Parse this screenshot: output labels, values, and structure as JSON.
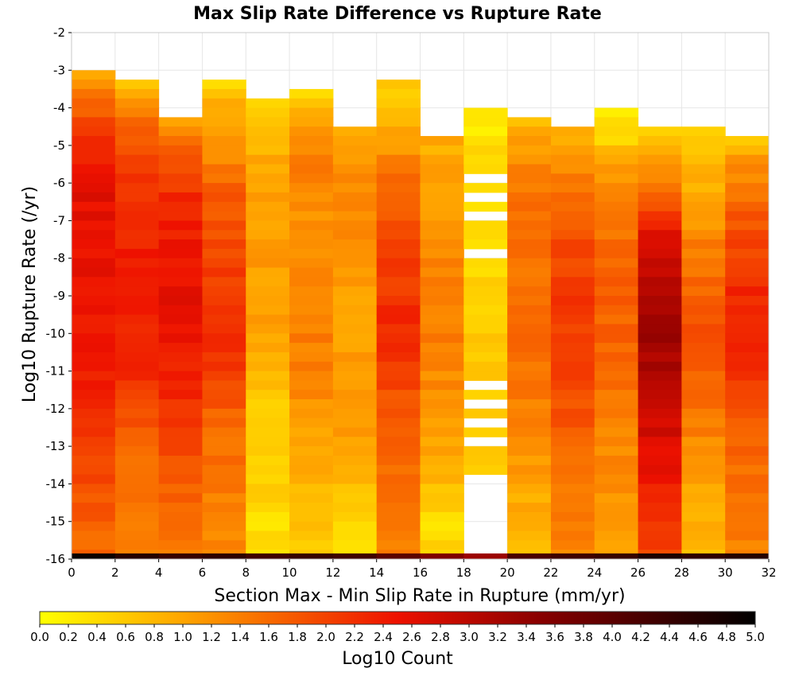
{
  "chart_data": {
    "type": "heatmap",
    "title": "Max Slip Rate Difference vs Rupture Rate",
    "xlabel": "Section Max - Min Slip Rate in Rupture (mm/yr)",
    "ylabel": "Log10 Rupture Rate (/yr)",
    "xlim": [
      0,
      32
    ],
    "ylim": [
      -16,
      -2
    ],
    "x_ticks": [
      "0",
      "2",
      "4",
      "6",
      "8",
      "10",
      "12",
      "14",
      "16",
      "18",
      "20",
      "22",
      "24",
      "26",
      "28",
      "30",
      "32"
    ],
    "y_ticks": [
      "-2",
      "-3",
      "-4",
      "-5",
      "-6",
      "-7",
      "-8",
      "-9",
      "-10",
      "-11",
      "-12",
      "-13",
      "-14",
      "-15",
      "-16"
    ],
    "x_bin_width": 2,
    "y_bin_height": 0.25,
    "grid": true,
    "colorbar": {
      "label": "Log10 Count",
      "min": 0,
      "max": 5,
      "ticks": [
        "0.0",
        "0.2",
        "0.4",
        "0.6",
        "0.8",
        "1.0",
        "1.2",
        "1.4",
        "1.6",
        "1.8",
        "2.0",
        "2.2",
        "2.4",
        "2.6",
        "2.8",
        "3.0",
        "3.2",
        "3.4",
        "3.6",
        "3.8",
        "4.0",
        "4.2",
        "4.4",
        "4.6",
        "4.8",
        "5.0"
      ],
      "placement": "bottom",
      "stops": [
        {
          "value": 0.0,
          "color": "#ffff00"
        },
        {
          "value": 1.0,
          "color": "#ffa500"
        },
        {
          "value": 2.5,
          "color": "#ee1100"
        },
        {
          "value": 3.5,
          "color": "#880000"
        },
        {
          "value": 5.0,
          "color": "#000000"
        }
      ]
    },
    "columns": [
      {
        "x0": 0,
        "x1": 2,
        "top": -3.0,
        "profile": [
          [
            -3.0,
            1.0
          ],
          [
            -3.5,
            1.4
          ],
          [
            -4.5,
            2.0
          ],
          [
            -6.0,
            2.6
          ],
          [
            -9.0,
            2.5
          ],
          [
            -12.0,
            2.3
          ],
          [
            -14.0,
            1.9
          ],
          [
            -15.75,
            1.6
          ]
        ]
      },
      {
        "x0": 2,
        "x1": 4,
        "top": -3.25,
        "profile": [
          [
            -3.25,
            0.4
          ],
          [
            -3.75,
            1.2
          ],
          [
            -4.5,
            1.7
          ],
          [
            -6.0,
            2.2
          ],
          [
            -8.5,
            2.4
          ],
          [
            -11.0,
            2.3
          ],
          [
            -13.0,
            1.6
          ],
          [
            -15.75,
            1.3
          ]
        ]
      },
      {
        "x0": 4,
        "x1": 6,
        "top": -4.25,
        "profile": [
          [
            -4.25,
            1.0
          ],
          [
            -5.0,
            1.6
          ],
          [
            -6.5,
            2.3
          ],
          [
            -9.5,
            2.6
          ],
          [
            -12.0,
            2.2
          ],
          [
            -13.5,
            1.8
          ],
          [
            -15.75,
            1.5
          ]
        ]
      },
      {
        "x0": 6,
        "x1": 8,
        "top": -3.25,
        "profile": [
          [
            -3.25,
            0.4
          ],
          [
            -4.0,
            1.0
          ],
          [
            -5.0,
            1.2
          ],
          [
            -6.5,
            1.8
          ],
          [
            -9.0,
            2.1
          ],
          [
            -10.5,
            2.2
          ],
          [
            -12.5,
            1.6
          ],
          [
            -15.75,
            1.3
          ]
        ]
      },
      {
        "x0": 8,
        "x1": 10,
        "top": -3.75,
        "profile": [
          [
            -3.75,
            0.3
          ],
          [
            -4.5,
            0.7
          ],
          [
            -6.0,
            1.1
          ],
          [
            -8.0,
            1.1
          ],
          [
            -10.0,
            1.0
          ],
          [
            -12.0,
            0.6
          ],
          [
            -14.0,
            0.5
          ],
          [
            -15.75,
            0.3
          ]
        ]
      },
      {
        "x0": 10,
        "x1": 12,
        "top": -3.5,
        "profile": [
          [
            -3.5,
            0.2
          ],
          [
            -4.25,
            0.9
          ],
          [
            -5.5,
            1.5
          ],
          [
            -7.0,
            1.2
          ],
          [
            -9.0,
            1.4
          ],
          [
            -11.0,
            1.4
          ],
          [
            -13.0,
            1.0
          ],
          [
            -15.75,
            0.6
          ]
        ]
      },
      {
        "x0": 12,
        "x1": 14,
        "top": -4.5,
        "profile": [
          [
            -4.5,
            0.8
          ],
          [
            -6.0,
            1.3
          ],
          [
            -8.0,
            1.2
          ],
          [
            -10.0,
            1.0
          ],
          [
            -12.0,
            1.2
          ],
          [
            -14.0,
            0.8
          ],
          [
            -15.75,
            0.3
          ]
        ]
      },
      {
        "x0": 14,
        "x1": 16,
        "top": -3.25,
        "profile": [
          [
            -3.25,
            0.5
          ],
          [
            -4.5,
            0.9
          ],
          [
            -6.0,
            1.6
          ],
          [
            -8.0,
            2.0
          ],
          [
            -10.0,
            2.3
          ],
          [
            -12.0,
            1.8
          ],
          [
            -14.0,
            1.5
          ],
          [
            -15.75,
            1.4
          ]
        ]
      },
      {
        "x0": 16,
        "x1": 18,
        "top": -4.75,
        "profile": [
          [
            -4.75,
            0.9
          ],
          [
            -6.0,
            1.0
          ],
          [
            -8.0,
            1.3
          ],
          [
            -10.0,
            1.4
          ],
          [
            -12.0,
            1.2
          ],
          [
            -14.0,
            0.8
          ],
          [
            -15.0,
            0.3
          ],
          [
            -15.75,
            0.5
          ]
        ]
      },
      {
        "x0": 18,
        "x1": 20,
        "top": -4.0,
        "profile": [
          [
            -4.0,
            0.1
          ],
          [
            -5.0,
            0.4
          ],
          [
            -7.0,
            0.3
          ],
          [
            -9.0,
            0.5
          ],
          [
            -11.0,
            0.6
          ],
          [
            -13.0,
            0.5
          ],
          [
            -13.5,
            0.6
          ]
        ],
        "gaps": [
          -5.9,
          -6.4,
          -6.9,
          -7.9,
          -11.4,
          -11.9,
          -12.4,
          -12.9
        ],
        "empty_below": -13.75
      },
      {
        "x0": 20,
        "x1": 22,
        "top": -4.25,
        "profile": [
          [
            -4.25,
            0.7
          ],
          [
            -5.0,
            1.1
          ],
          [
            -6.0,
            1.5
          ],
          [
            -8.0,
            1.5
          ],
          [
            -10.0,
            1.6
          ],
          [
            -12.0,
            1.4
          ],
          [
            -14.0,
            1.0
          ],
          [
            -15.75,
            0.8
          ]
        ]
      },
      {
        "x0": 22,
        "x1": 24,
        "top": -4.5,
        "profile": [
          [
            -4.5,
            0.8
          ],
          [
            -5.5,
            1.3
          ],
          [
            -7.0,
            1.8
          ],
          [
            -9.0,
            2.1
          ],
          [
            -11.0,
            2.0
          ],
          [
            -12.5,
            1.8
          ],
          [
            -14.0,
            1.5
          ],
          [
            -15.75,
            1.3
          ]
        ]
      },
      {
        "x0": 24,
        "x1": 26,
        "top": -4.0,
        "profile": [
          [
            -4.0,
            0.3
          ],
          [
            -4.75,
            0.4
          ],
          [
            -5.5,
            1.0
          ],
          [
            -7.0,
            1.5
          ],
          [
            -9.0,
            1.7
          ],
          [
            -11.0,
            1.6
          ],
          [
            -13.0,
            1.3
          ],
          [
            -15.75,
            1.1
          ]
        ]
      },
      {
        "x0": 26,
        "x1": 28,
        "top": -4.5,
        "profile": [
          [
            -4.5,
            0.4
          ],
          [
            -5.5,
            1.1
          ],
          [
            -6.5,
            1.7
          ],
          [
            -7.5,
            2.7
          ],
          [
            -10.0,
            3.3
          ],
          [
            -12.0,
            2.9
          ],
          [
            -14.0,
            2.4
          ],
          [
            -15.75,
            2.0
          ]
        ]
      },
      {
        "x0": 28,
        "x1": 30,
        "top": -4.5,
        "profile": [
          [
            -4.5,
            0.4
          ],
          [
            -5.5,
            0.8
          ],
          [
            -6.5,
            1.0
          ],
          [
            -8.0,
            1.5
          ],
          [
            -10.0,
            1.9
          ],
          [
            -12.0,
            1.5
          ],
          [
            -14.0,
            1.0
          ],
          [
            -15.75,
            0.8
          ]
        ]
      },
      {
        "x0": 30,
        "x1": 32,
        "top": -4.75,
        "profile": [
          [
            -4.75,
            0.6
          ],
          [
            -5.5,
            1.2
          ],
          [
            -7.0,
            1.8
          ],
          [
            -9.0,
            2.3
          ],
          [
            -11.0,
            2.2
          ],
          [
            -12.5,
            1.8
          ],
          [
            -14.0,
            1.5
          ],
          [
            -15.75,
            1.4
          ]
        ]
      }
    ],
    "bottom_row": {
      "y0": -16.0,
      "y1": -15.85,
      "values": [
        4.9,
        4.6,
        4.4,
        4.5,
        4.3,
        4.4,
        4.3,
        4.0,
        3.6,
        3.3,
        4.2,
        4.3,
        4.4,
        4.7,
        4.5,
        4.6
      ]
    }
  }
}
